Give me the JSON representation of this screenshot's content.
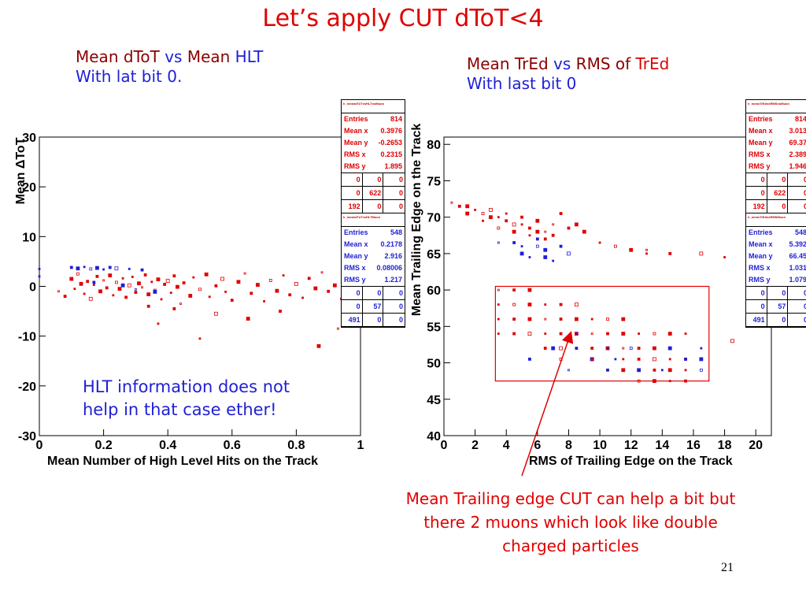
{
  "slide": {
    "title": "Let’s apply CUT dToT<4",
    "left_sub_line1": [
      {
        "text": "Mean dToT ",
        "color": "dark"
      },
      {
        "text": "vs ",
        "color": "blue"
      },
      {
        "text": "Mean ",
        "color": "dark"
      },
      {
        "text": "HLT",
        "color": "blue"
      }
    ],
    "left_sub_line2": "With lat bit 0.",
    "right_sub_line1": [
      {
        "text": "Mean TrEd ",
        "color": "dark"
      },
      {
        "text": "vs ",
        "color": "blue"
      },
      {
        "text": "RMS of ",
        "color": "dark"
      },
      {
        "text": "TrEd",
        "color": "red"
      }
    ],
    "right_sub_line2": "With last bit 0",
    "left_note_line1": "HLT information does not",
    "left_note_line2": "help in that case ether!",
    "right_note_line1": "Mean Trailing edge CUT can help a bit but",
    "right_note_line2": "there 2 muons which look like double",
    "right_note_line3": "charged particles",
    "page_number": "21"
  },
  "colors": {
    "red": "#e00000",
    "blue": "#1f1fd6",
    "dark": "#8b0000"
  },
  "chart_data": [
    {
      "type": "scatter",
      "title": "",
      "xlabel": "Mean Number of High Level Hits on the Track",
      "ylabel": "Mean ΔToT",
      "xlim": [
        0,
        1
      ],
      "ylim": [
        -30,
        30
      ],
      "xticks": [
        "0",
        "0.2",
        "0.4",
        "0.6",
        "0.8",
        "1"
      ],
      "yticks": [
        "30",
        "20",
        "10",
        "0",
        "-10",
        "-20",
        "-30"
      ],
      "series": [
        {
          "color": "red",
          "points": [
            [
              0.06,
              -1
            ],
            [
              0.08,
              -2
            ],
            [
              0.1,
              1.5
            ],
            [
              0.11,
              -0.5
            ],
            [
              0.12,
              2.5
            ],
            [
              0.13,
              0.5
            ],
            [
              0.14,
              -1.5
            ],
            [
              0.15,
              1
            ],
            [
              0.16,
              -2.5
            ],
            [
              0.17,
              0.3
            ],
            [
              0.18,
              2
            ],
            [
              0.19,
              -1
            ],
            [
              0.2,
              1.2
            ],
            [
              0.21,
              -0.3
            ],
            [
              0.22,
              2.2
            ],
            [
              0.23,
              -1.8
            ],
            [
              0.24,
              0.8
            ],
            [
              0.25,
              -0.5
            ],
            [
              0.26,
              1.6
            ],
            [
              0.27,
              -2.2
            ],
            [
              0.28,
              0.2
            ],
            [
              0.29,
              1.9
            ],
            [
              0.3,
              -1.2
            ],
            [
              0.31,
              0.6
            ],
            [
              0.32,
              -0.2
            ],
            [
              0.33,
              2.3
            ],
            [
              0.34,
              -1.6
            ],
            [
              0.35,
              0.9
            ],
            [
              0.36,
              -0.8
            ],
            [
              0.37,
              1.4
            ],
            [
              0.38,
              -2.6
            ],
            [
              0.39,
              0.4
            ],
            [
              0.4,
              1.1
            ],
            [
              0.41,
              -1.3
            ],
            [
              0.42,
              2.1
            ],
            [
              0.43,
              -0.1
            ],
            [
              0.44,
              -3.5
            ],
            [
              0.45,
              0.7
            ],
            [
              0.47,
              -1.9
            ],
            [
              0.48,
              1.8
            ],
            [
              0.5,
              -0.6
            ],
            [
              0.52,
              2.4
            ],
            [
              0.53,
              -2.1
            ],
            [
              0.55,
              0.1
            ],
            [
              0.57,
              1.5
            ],
            [
              0.58,
              -1.1
            ],
            [
              0.6,
              -2.8
            ],
            [
              0.62,
              0.9
            ],
            [
              0.64,
              2.6
            ],
            [
              0.66,
              -1.4
            ],
            [
              0.68,
              0.3
            ],
            [
              0.7,
              -3
            ],
            [
              0.72,
              1.2
            ],
            [
              0.74,
              -0.9
            ],
            [
              0.76,
              2.2
            ],
            [
              0.78,
              -1.7
            ],
            [
              0.8,
              0.5
            ],
            [
              0.82,
              -2.3
            ],
            [
              0.84,
              1.6
            ],
            [
              0.86,
              -0.4
            ],
            [
              0.88,
              2.8
            ],
            [
              0.9,
              -1
            ],
            [
              0.92,
              0.2
            ],
            [
              0.94,
              -2.5
            ],
            [
              0.96,
              1
            ],
            [
              0.98,
              -1.5
            ],
            [
              0.37,
              -7.5
            ],
            [
              0.42,
              -4.5
            ],
            [
              0.55,
              -5.5
            ],
            [
              0.5,
              -10.5
            ],
            [
              0.75,
              -5
            ],
            [
              0.87,
              -12
            ],
            [
              0.93,
              -8.5
            ],
            [
              0.34,
              -4
            ],
            [
              0.65,
              -6.5
            ]
          ]
        },
        {
          "color": "blue",
          "points": [
            [
              0.0,
              3.5
            ],
            [
              0.1,
              3.8
            ],
            [
              0.12,
              3.6
            ],
            [
              0.14,
              3.9
            ],
            [
              0.16,
              3.5
            ],
            [
              0.18,
              3.7
            ],
            [
              0.2,
              3.4
            ],
            [
              0.22,
              3.8
            ],
            [
              0.24,
              3.6
            ],
            [
              0.28,
              3.5
            ],
            [
              0.32,
              3.3
            ],
            [
              0.26,
              0.2
            ],
            [
              0.3,
              -0.6
            ],
            [
              0.17,
              0.8
            ],
            [
              0.36,
              -1.1
            ],
            [
              0.0,
              2
            ]
          ]
        }
      ],
      "stats_boxes": [
        {
          "color": "red",
          "header": "h_meandToTvsHLTnoMuon",
          "rows": [
            [
              "Entries",
              "814"
            ],
            [
              "Mean x",
              "0.3976"
            ],
            [
              "Mean y",
              "-0.2653"
            ],
            [
              "RMS x",
              "0.2315"
            ],
            [
              "RMS y",
              "1.895"
            ]
          ],
          "grid": [
            "0",
            "0",
            "0",
            "0",
            "622",
            "0",
            "192",
            "0",
            "0"
          ]
        },
        {
          "color": "blue",
          "header": "h_meandToTvsHLTMuon",
          "rows": [
            [
              "Entries",
              "548"
            ],
            [
              "Mean x",
              "0.2178"
            ],
            [
              "Mean y",
              "2.916"
            ],
            [
              "RMS x",
              "0.08006"
            ],
            [
              "RMS y",
              "1.217"
            ]
          ],
          "grid": [
            "0",
            "0",
            "0",
            "0",
            "57",
            "0",
            "491",
            "0",
            "0"
          ]
        }
      ]
    },
    {
      "type": "scatter",
      "title": "",
      "xlabel": "RMS of Trailing Edge on the Track",
      "ylabel": "Mean Trailing Edge on the Track",
      "xlim": [
        0,
        21
      ],
      "ylim": [
        40,
        81
      ],
      "xticks": [
        "0",
        "2",
        "4",
        "6",
        "8",
        "10",
        "12",
        "14",
        "16",
        "18",
        "20"
      ],
      "yticks": [
        "80",
        "75",
        "70",
        "65",
        "60",
        "55",
        "50",
        "45",
        "40"
      ],
      "series": [
        {
          "color": "red",
          "points": [
            [
              0.5,
              72
            ],
            [
              1,
              71.5
            ],
            [
              1.5,
              71.5
            ],
            [
              2,
              71
            ],
            [
              2.5,
              70.5
            ],
            [
              3,
              70
            ],
            [
              3.5,
              70
            ],
            [
              4,
              69.5
            ],
            [
              4.5,
              69
            ],
            [
              5,
              69
            ],
            [
              5.5,
              68.5
            ],
            [
              6,
              68
            ],
            [
              6.5,
              68
            ],
            [
              7,
              67.5
            ],
            [
              1.5,
              70.5
            ],
            [
              2.5,
              69.5
            ],
            [
              3.5,
              68.5
            ],
            [
              4.5,
              68
            ],
            [
              5.5,
              67.5
            ],
            [
              6.5,
              67
            ],
            [
              3,
              71
            ],
            [
              4,
              70.5
            ],
            [
              5,
              70
            ],
            [
              6,
              69.5
            ],
            [
              7,
              69
            ],
            [
              8,
              68.5
            ],
            [
              9,
              68
            ],
            [
              10,
              66.5
            ],
            [
              11,
              66
            ],
            [
              12,
              65.5
            ],
            [
              13,
              65
            ],
            [
              14.5,
              65
            ],
            [
              16.5,
              65
            ],
            [
              18,
              64.5
            ],
            [
              7.5,
              70.5
            ],
            [
              8.5,
              69
            ],
            [
              13,
              65.5
            ]
          ]
        },
        {
          "color": "blue",
          "points": [
            [
              3.5,
              66.5
            ],
            [
              4.5,
              66.5
            ],
            [
              5,
              65
            ],
            [
              5.5,
              64.5
            ],
            [
              6,
              66
            ],
            [
              6.5,
              65.5
            ],
            [
              7,
              64
            ],
            [
              7.5,
              66
            ],
            [
              8,
              65
            ],
            [
              5,
              66
            ],
            [
              6,
              67
            ],
            [
              6.5,
              64.5
            ]
          ]
        },
        {
          "color": "red",
          "points": [
            [
              3.5,
              60
            ],
            [
              4.5,
              60
            ],
            [
              5.5,
              60
            ],
            [
              3.5,
              58
            ],
            [
              4.5,
              58
            ],
            [
              5.5,
              58
            ],
            [
              6.5,
              58
            ],
            [
              7.5,
              58
            ],
            [
              8.5,
              58
            ],
            [
              3.5,
              56
            ],
            [
              4.5,
              56
            ],
            [
              5.5,
              56
            ],
            [
              6.5,
              56
            ],
            [
              7.5,
              56
            ],
            [
              8.5,
              56
            ],
            [
              9.5,
              56
            ],
            [
              10.5,
              56
            ],
            [
              11.5,
              56
            ],
            [
              3.5,
              54
            ],
            [
              4.5,
              54
            ],
            [
              5.5,
              54
            ],
            [
              6.5,
              54
            ],
            [
              7.5,
              54
            ],
            [
              8.5,
              54
            ],
            [
              9.5,
              54
            ],
            [
              10.5,
              54
            ],
            [
              11.5,
              54
            ],
            [
              12.5,
              54
            ],
            [
              13.5,
              54
            ],
            [
              14.5,
              54
            ],
            [
              15.5,
              54
            ],
            [
              6.5,
              52
            ],
            [
              7.5,
              52
            ],
            [
              8.5,
              52
            ],
            [
              9.5,
              52
            ],
            [
              10.5,
              52
            ],
            [
              11.5,
              52
            ],
            [
              12.5,
              52
            ],
            [
              13.5,
              52
            ],
            [
              14.5,
              52
            ],
            [
              7.5,
              50.5
            ],
            [
              9.5,
              50.5
            ],
            [
              11.5,
              50.5
            ],
            [
              12.5,
              50.5
            ],
            [
              13.5,
              50.5
            ],
            [
              14.5,
              50.5
            ],
            [
              15.5,
              50.5
            ],
            [
              11.5,
              49
            ],
            [
              12.5,
              49
            ],
            [
              13.5,
              49
            ],
            [
              14.5,
              49
            ],
            [
              15.5,
              49
            ],
            [
              12.5,
              47.5
            ],
            [
              13.5,
              47.5
            ],
            [
              14.5,
              47.5
            ],
            [
              15.5,
              47.5
            ],
            [
              18.5,
              53
            ]
          ]
        },
        {
          "color": "blue",
          "points": [
            [
              8.5,
              54
            ],
            [
              8.5,
              52
            ],
            [
              7,
              52
            ],
            [
              10.5,
              52
            ],
            [
              12,
              52
            ],
            [
              14.5,
              52
            ],
            [
              16.5,
              52
            ],
            [
              5.5,
              50.5
            ],
            [
              9.5,
              50.5
            ],
            [
              11,
              50.5
            ],
            [
              15.5,
              50.5
            ],
            [
              16.5,
              50.5
            ],
            [
              8,
              49
            ],
            [
              10.5,
              49
            ],
            [
              12.5,
              49
            ],
            [
              14,
              49
            ],
            [
              16.5,
              49
            ]
          ]
        }
      ],
      "stats_boxes": [
        {
          "color": "red",
          "header": "h_meanTrEdvsRMSnoMuon",
          "rows": [
            [
              "Entries",
              "814"
            ],
            [
              "Mean x",
              "3.013"
            ],
            [
              "Mean y",
              "69.37"
            ],
            [
              "RMS x",
              "2.389"
            ],
            [
              "RMS y",
              "1.946"
            ]
          ],
          "grid": [
            "0",
            "0",
            "0",
            "0",
            "622",
            "0",
            "192",
            "0",
            "0"
          ]
        },
        {
          "color": "blue",
          "header": "h_meanTrEdvsRMSMuon",
          "rows": [
            [
              "Entries",
              "548"
            ],
            [
              "Mean x",
              "5.392"
            ],
            [
              "Mean y",
              "66.45"
            ],
            [
              "RMS x",
              "1.031"
            ],
            [
              "RMS y",
              "1.079"
            ]
          ],
          "grid": [
            "0",
            "0",
            "0",
            "0",
            "57",
            "0",
            "491",
            "0",
            "0"
          ]
        }
      ],
      "cut_box": {
        "x": [
          3.3,
          17
        ],
        "y": [
          47.5,
          60.5
        ]
      }
    }
  ]
}
